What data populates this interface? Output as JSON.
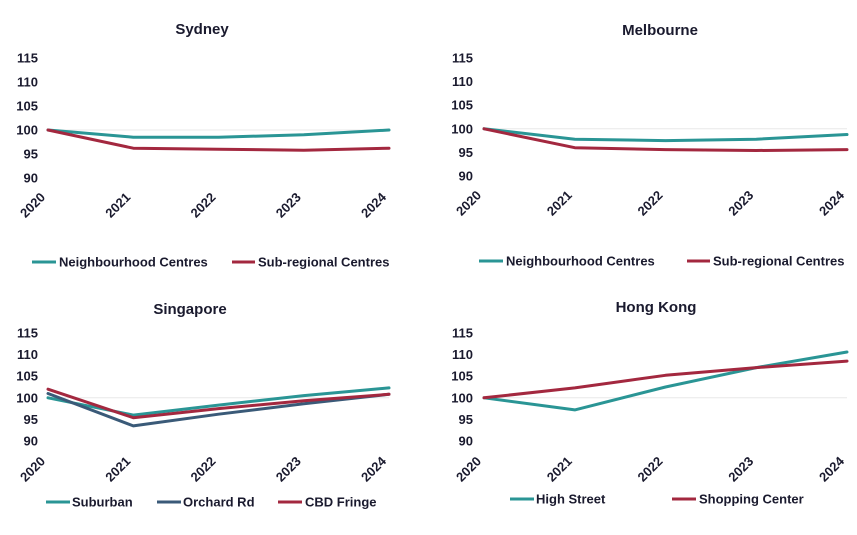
{
  "chart_data": [
    {
      "type": "line",
      "title": "Sydney",
      "x": [
        "2020",
        "2021",
        "2022",
        "2023",
        "2024"
      ],
      "yticks": [
        115,
        110,
        105,
        100,
        95,
        90
      ],
      "ylim": [
        90,
        115
      ],
      "grid": false,
      "legend_position": "bottom",
      "series": [
        {
          "name": "Neighbourhood Centres",
          "color": "#2a9595",
          "values": [
            100,
            98.5,
            98.5,
            99,
            100
          ]
        },
        {
          "name": "Sub-regional Centres",
          "color": "#a3283f",
          "values": [
            100,
            96.2,
            96,
            95.8,
            96.2
          ]
        }
      ]
    },
    {
      "type": "line",
      "title": "Melbourne",
      "x": [
        "2020",
        "2021",
        "2022",
        "2023",
        "2024"
      ],
      "yticks": [
        115,
        110,
        105,
        100,
        95,
        90
      ],
      "ylim": [
        90,
        115
      ],
      "grid": false,
      "legend_position": "bottom",
      "series": [
        {
          "name": "Neighbourhood Centres",
          "color": "#2a9595",
          "values": [
            100,
            97.8,
            97.5,
            97.8,
            98.8
          ]
        },
        {
          "name": "Sub-regional Centres",
          "color": "#a3283f",
          "values": [
            100,
            96,
            95.6,
            95.4,
            95.6
          ]
        }
      ]
    },
    {
      "type": "line",
      "title": "Singapore",
      "x": [
        "2020",
        "2021",
        "2022",
        "2023",
        "2024"
      ],
      "yticks": [
        115,
        110,
        105,
        100,
        95,
        90
      ],
      "ylim": [
        90,
        115
      ],
      "grid": false,
      "legend_position": "bottom",
      "series": [
        {
          "name": "Suburban",
          "color": "#2a9595",
          "values": [
            100,
            96,
            98.3,
            100.5,
            102.3
          ]
        },
        {
          "name": "Orchard Rd",
          "color": "#3a5a78",
          "values": [
            101,
            93.5,
            96.2,
            98.6,
            100.8
          ]
        },
        {
          "name": "CBD Fringe",
          "color": "#a3283f",
          "values": [
            102,
            95.4,
            97.5,
            99.3,
            100.8
          ]
        }
      ]
    },
    {
      "type": "line",
      "title": "Hong Kong",
      "x": [
        "2020",
        "2021",
        "2022",
        "2023",
        "2024"
      ],
      "yticks": [
        115,
        110,
        105,
        100,
        95,
        90
      ],
      "ylim": [
        90,
        115
      ],
      "grid": false,
      "legend_position": "bottom",
      "series": [
        {
          "name": "High Street",
          "color": "#2a9595",
          "values": [
            100,
            97.2,
            102.5,
            107,
            110.6
          ]
        },
        {
          "name": "Shopping Center",
          "color": "#a3283f",
          "values": [
            100,
            102.3,
            105.2,
            107,
            108.5
          ]
        }
      ]
    }
  ]
}
